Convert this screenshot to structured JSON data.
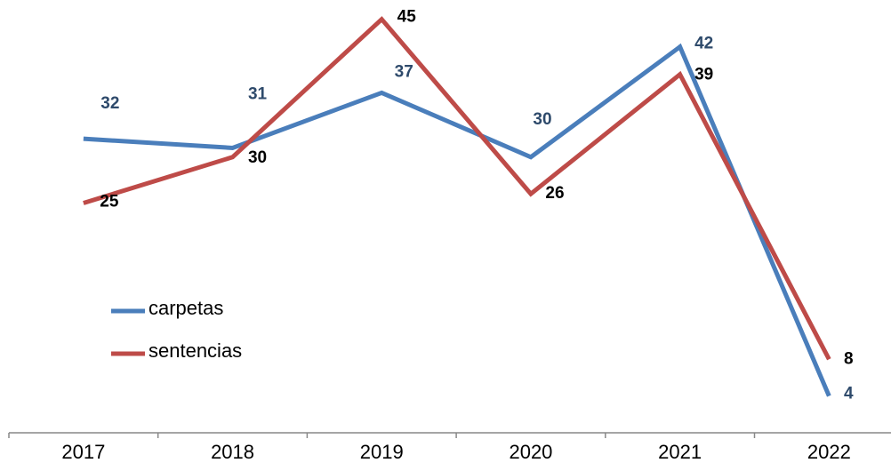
{
  "chart_data": {
    "type": "line",
    "categories": [
      "2017",
      "2018",
      "2019",
      "2020",
      "2021",
      "2022"
    ],
    "series": [
      {
        "name": "carpetas",
        "color": "#4a7ebb",
        "label_color": "#2e4a6b",
        "values": [
          32,
          31,
          37,
          30,
          42,
          4
        ]
      },
      {
        "name": "sentencias",
        "color": "#be4b48",
        "label_color": "#000000",
        "values": [
          25,
          30,
          45,
          26,
          39,
          8
        ]
      }
    ],
    "ylim": [
      0,
      47
    ],
    "legend": "left"
  }
}
